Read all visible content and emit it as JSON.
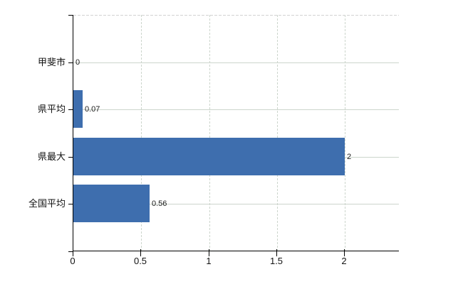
{
  "chart_data": {
    "type": "bar",
    "orientation": "horizontal",
    "title": "",
    "categories": [
      "甲斐市",
      "県平均",
      "県最大",
      "全国平均"
    ],
    "values": [
      0,
      0.07,
      2,
      0.56
    ],
    "value_labels": [
      "0",
      "0.07",
      "2",
      "0.56"
    ],
    "x_ticks": [
      0,
      0.5,
      1,
      1.5,
      2
    ],
    "x_tick_labels": [
      "0",
      "0.5",
      "1",
      "1.5",
      "2"
    ],
    "xlim": [
      0,
      2.4
    ],
    "grid": true,
    "legend": false,
    "bar_color": "#3e6eae",
    "grid_color": "#ccd5cc",
    "axis_color": "#000000",
    "text_color": "#111111"
  }
}
